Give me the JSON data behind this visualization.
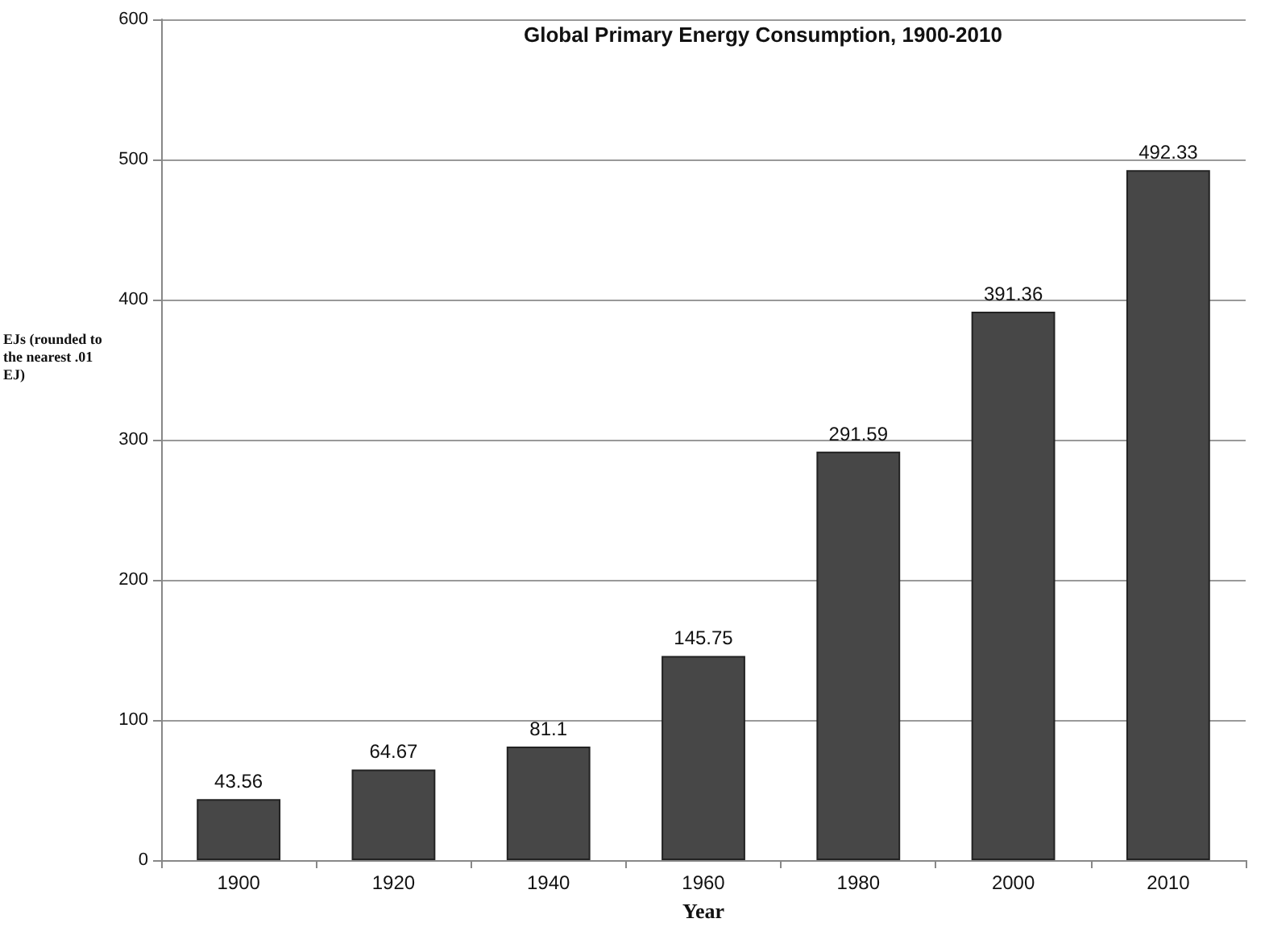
{
  "chart_data": {
    "type": "bar",
    "title": "Global Primary Energy Consumption, 1900-2010",
    "xlabel": "Year",
    "ylabel": "EJs (rounded to the nearest .01 EJ)",
    "categories": [
      "1900",
      "1920",
      "1940",
      "1960",
      "1980",
      "2000",
      "2010"
    ],
    "values": [
      43.56,
      64.67,
      81.1,
      145.75,
      291.59,
      391.36,
      492.33
    ],
    "color": "#474747",
    "ylim": [
      0,
      600
    ],
    "yticks": [
      0,
      100,
      200,
      300,
      400,
      500,
      600
    ],
    "grid": "y",
    "data_labels": true
  }
}
